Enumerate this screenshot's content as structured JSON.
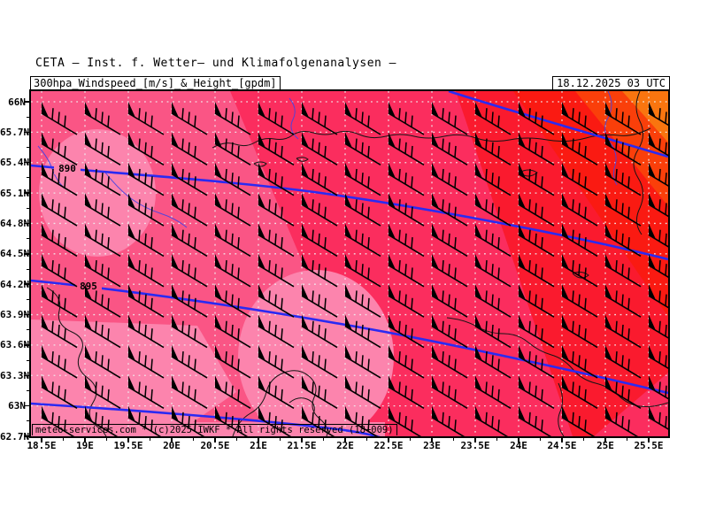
{
  "header": {
    "title": "CETA – Inst. f. Wetter– und Klimafolgenanalysen –",
    "subtitle": "300hpa_Windspeed_[m/s]_&_Height_[gpdm]",
    "datetime": "18.12.2025 03 UTC"
  },
  "footer": {
    "credit": "meteo-services.com * (c)2025 IWKF * All rights reserved (18+009)"
  },
  "chart_data": {
    "type": "weather-map",
    "title": "300 hPa wind speed [m/s] & geopotential height [gpdm]",
    "model": "CETA",
    "valid_time": "18.12.2025 03 UTC",
    "region": {
      "lon_min": "18.5E",
      "lon_max": "25.5E",
      "lat_min": "62.7N",
      "lat_max": "66N"
    },
    "lat_ticks": [
      "66N",
      "65.7N",
      "65.4N",
      "65.1N",
      "64.8N",
      "64.5N",
      "64.2N",
      "63.9N",
      "63.6N",
      "63.3N",
      "63N",
      "62.7N"
    ],
    "lon_ticks": [
      "18.5E",
      "19E",
      "19.5E",
      "20E",
      "20.5E",
      "21E",
      "21.5E",
      "22E",
      "22.5E",
      "23E",
      "23.5E",
      "24E",
      "24.5E",
      "25E",
      "25.5E"
    ],
    "height_contours_gpdm": [
      {
        "value": null,
        "labeled": false
      },
      {
        "value": 890,
        "labeled": true
      },
      {
        "value": 895,
        "labeled": true
      },
      {
        "value": null,
        "labeled": false
      }
    ],
    "contour_labels": [
      "890",
      "895"
    ],
    "wind_barbs": {
      "glyph": "pennant + 3 full barbs",
      "approx_speed_ms": 55,
      "direction": "from NW"
    },
    "grid": "white dotted graticule every 0.5 deg lon / 0.3 deg lat",
    "colors": {
      "contour_blue": "#2a2af2",
      "river_blue": "#4343e6",
      "coast_black": "#141414",
      "grid_dots": "#f0f0f0",
      "speed_bands": [
        "#fc84ad",
        "#fa5585",
        "#fb2d5e",
        "#fa1a2e",
        "#fa1a12",
        "#fa3f0a",
        "#f9750f"
      ]
    }
  }
}
